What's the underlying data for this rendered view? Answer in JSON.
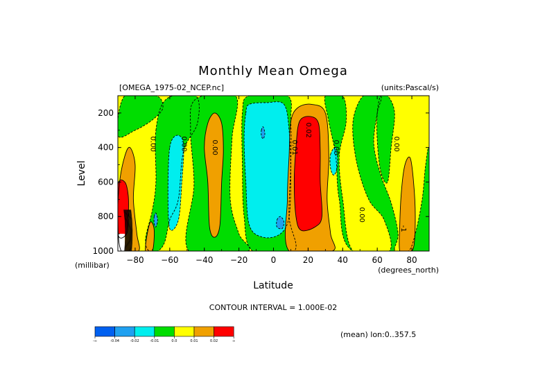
{
  "chart_data": {
    "type": "heatmap",
    "title": "Monthly Mean Omega",
    "subtitle_left": "[OMEGA_1975-02_NCEP.nc]",
    "subtitle_right": "(units:Pascal/s)",
    "xlabel": "Latitude",
    "xunit": "(degrees_north)",
    "ylabel": "Level",
    "yunit": "(millibar)",
    "xlim": [
      -90,
      90
    ],
    "ylim": [
      1000,
      100
    ],
    "xticks": [
      -80,
      -60,
      -40,
      -20,
      0,
      20,
      40,
      60,
      80
    ],
    "yticks": [
      200,
      400,
      600,
      800,
      1000
    ],
    "contour_interval": "CONTOUR INTERVAL = 1.000E-02",
    "footer": "(mean) lon:0..357.5",
    "contour_labels": [
      {
        "text": "0.00",
        "lat": -71,
        "lev": 380
      },
      {
        "text": "0.00",
        "lat": -53,
        "lev": 380
      },
      {
        "text": "0.00",
        "lat": -35,
        "lev": 400
      },
      {
        "text": "0.01",
        "lat": 11,
        "lev": 400
      },
      {
        "text": "0.02",
        "lat": 19,
        "lev": 300
      },
      {
        "text": "0.00",
        "lat": 35,
        "lev": 400
      },
      {
        "text": "0.00",
        "lat": 50,
        "lev": 790
      },
      {
        "text": "0.00",
        "lat": 70,
        "lev": 380
      },
      {
        "text": "-1",
        "lat": 74,
        "lev": 870
      }
    ],
    "legend": {
      "colors": [
        "#0060f0",
        "#1fa0f0",
        "#00eeee",
        "#00dd00",
        "#ffff00",
        "#f0a000",
        "#ff0000"
      ],
      "tick_labels": [
        "-∞",
        "-0.04",
        "-0.02",
        "-0.01",
        "0.0",
        "0.01",
        "0.02",
        "∞"
      ]
    },
    "regions": [
      {
        "level": "neg2",
        "color": "#1fa0f0",
        "latmin": -90,
        "latmax": 90,
        "levmin": 100,
        "levmax": 1000,
        "shape": "none"
      },
      {
        "level": "zero",
        "color": "#ffff00",
        "shape": "background"
      },
      {
        "level": "neg1",
        "color": "#00dd00",
        "polys": [
          [
            [
              -86,
              100
            ],
            [
              -68,
              100
            ],
            [
              -64,
              170
            ],
            [
              -70,
              240
            ],
            [
              -80,
              300
            ],
            [
              -90,
              330
            ]
          ],
          [
            [
              -68,
              300
            ],
            [
              -62,
              120
            ],
            [
              -45,
              100
            ],
            [
              -44,
              260
            ],
            [
              -52,
              420
            ],
            [
              -55,
              700
            ],
            [
              -60,
              820
            ],
            [
              -63,
              950
            ],
            [
              -67,
              1000
            ],
            [
              -72,
              1000
            ],
            [
              -74,
              930
            ],
            [
              -70,
              760
            ],
            [
              -68,
              600
            ]
          ],
          [
            [
              -49,
              1000
            ],
            [
              -46,
              620
            ],
            [
              -48,
              300
            ],
            [
              -45,
              120
            ],
            [
              -22,
              100
            ],
            [
              -24,
              350
            ],
            [
              -25,
              700
            ],
            [
              -20,
              900
            ],
            [
              -15,
              1000
            ]
          ],
          [
            [
              -12,
              1000
            ],
            [
              -17,
              800
            ],
            [
              -18,
              500
            ],
            [
              -18,
              200
            ],
            [
              -14,
              100
            ],
            [
              8,
              100
            ],
            [
              10,
              250
            ],
            [
              10,
              500
            ],
            [
              9,
              800
            ],
            [
              12,
              1000
            ]
          ],
          [
            [
              30,
              100
            ],
            [
              40,
              100
            ],
            [
              42,
              250
            ],
            [
              38,
              450
            ],
            [
              40,
              700
            ],
            [
              46,
              1000
            ],
            [
              67,
              1000
            ],
            [
              64,
              820
            ],
            [
              55,
              700
            ],
            [
              48,
              480
            ],
            [
              46,
              250
            ],
            [
              52,
              100
            ],
            [
              62,
              100
            ],
            [
              60,
              200
            ],
            [
              58,
              380
            ],
            [
              62,
              560
            ],
            [
              68,
              720
            ],
            [
              72,
              900
            ],
            [
              70,
              1000
            ],
            [
              78,
              1000
            ],
            [
              82,
              900
            ],
            [
              86,
              700
            ],
            [
              88,
              500
            ],
            [
              90,
              430
            ],
            [
              90,
              1000
            ],
            [
              46,
              1000
            ],
            [
              38,
              700
            ],
            [
              36,
              450
            ],
            [
              32,
              250
            ]
          ],
          [
            [
              62,
              100
            ],
            [
              66,
              100
            ],
            [
              70,
              200
            ],
            [
              68,
              400
            ],
            [
              66,
              600
            ],
            [
              62,
              540
            ],
            [
              60,
              360
            ],
            [
              60,
              200
            ]
          ]
        ]
      },
      {
        "level": "neg2",
        "color": "#00eeee",
        "polys": [
          [
            [
              -16,
              200
            ],
            [
              -14,
              150
            ],
            [
              -4,
              140
            ],
            [
              6,
              150
            ],
            [
              9,
              300
            ],
            [
              10,
              550
            ],
            [
              9,
              800
            ],
            [
              4,
              900
            ],
            [
              -6,
              920
            ],
            [
              -14,
              850
            ],
            [
              -16,
              600
            ],
            [
              -17,
              350
            ]
          ],
          [
            [
              -60,
              400
            ],
            [
              -56,
              330
            ],
            [
              -52,
              380
            ],
            [
              -53,
              600
            ],
            [
              -55,
              820
            ],
            [
              -60,
              870
            ],
            [
              -61,
              650
            ]
          ],
          [
            [
              33,
              440
            ],
            [
              36,
              400
            ],
            [
              37,
              500
            ],
            [
              35,
              560
            ],
            [
              33,
              520
            ]
          ]
        ]
      },
      {
        "level": "neg3",
        "color": "#1fa0f0",
        "polys": [
          [
            [
              -7,
              300
            ],
            [
              -6,
              280
            ],
            [
              -5,
              320
            ],
            [
              -6,
              350
            ],
            [
              -7,
              330
            ]
          ],
          [
            [
              2,
              820
            ],
            [
              4,
              800
            ],
            [
              6,
              830
            ],
            [
              5,
              870
            ],
            [
              2,
              860
            ]
          ],
          [
            [
              -69,
              800
            ],
            [
              -68,
              780
            ],
            [
              -67,
              820
            ],
            [
              -68,
              860
            ],
            [
              -69,
              840
            ]
          ]
        ]
      },
      {
        "level": "pos1",
        "color": "#f0a000",
        "polys": [
          [
            [
              -88,
              1000
            ],
            [
              -90,
              800
            ],
            [
              -89,
              600
            ],
            [
              -86,
              450
            ],
            [
              -83,
              400
            ],
            [
              -80,
              500
            ],
            [
              -81,
              700
            ],
            [
              -79,
              900
            ],
            [
              -78,
              1000
            ]
          ],
          [
            [
              -74,
              1000
            ],
            [
              -73,
              900
            ],
            [
              -71,
              830
            ],
            [
              -69,
              880
            ],
            [
              -70,
              1000
            ]
          ],
          [
            [
              -38,
              600
            ],
            [
              -40,
              400
            ],
            [
              -38,
              260
            ],
            [
              -34,
              200
            ],
            [
              -30,
              260
            ],
            [
              -29,
              420
            ],
            [
              -30,
              600
            ],
            [
              -31,
              850
            ],
            [
              -34,
              920
            ],
            [
              -37,
              860
            ]
          ],
          [
            [
              9,
              1000
            ],
            [
              8,
              700
            ],
            [
              9,
              450
            ],
            [
              10,
              250
            ],
            [
              14,
              170
            ],
            [
              22,
              150
            ],
            [
              30,
              200
            ],
            [
              32,
              450
            ],
            [
              31,
              700
            ],
            [
              33,
              900
            ],
            [
              34,
              1000
            ]
          ],
          [
            [
              73,
              1000
            ],
            [
              73,
              850
            ],
            [
              74,
              650
            ],
            [
              76,
              500
            ],
            [
              79,
              460
            ],
            [
              81,
              600
            ],
            [
              82,
              800
            ],
            [
              81,
              980
            ],
            [
              77,
              1000
            ]
          ]
        ]
      },
      {
        "level": "pos2",
        "color": "#ff0000",
        "polys": [
          [
            [
              -90,
              620
            ],
            [
              -86,
              600
            ],
            [
              -84,
              680
            ],
            [
              -84,
              800
            ],
            [
              -85,
              900
            ],
            [
              -90,
              900
            ]
          ],
          [
            [
              13,
              800
            ],
            [
              12,
              600
            ],
            [
              13,
              400
            ],
            [
              15,
              250
            ],
            [
              21,
              220
            ],
            [
              26,
              260
            ],
            [
              27,
              420
            ],
            [
              27,
              600
            ],
            [
              28,
              800
            ],
            [
              24,
              860
            ],
            [
              16,
              880
            ]
          ]
        ]
      }
    ]
  }
}
